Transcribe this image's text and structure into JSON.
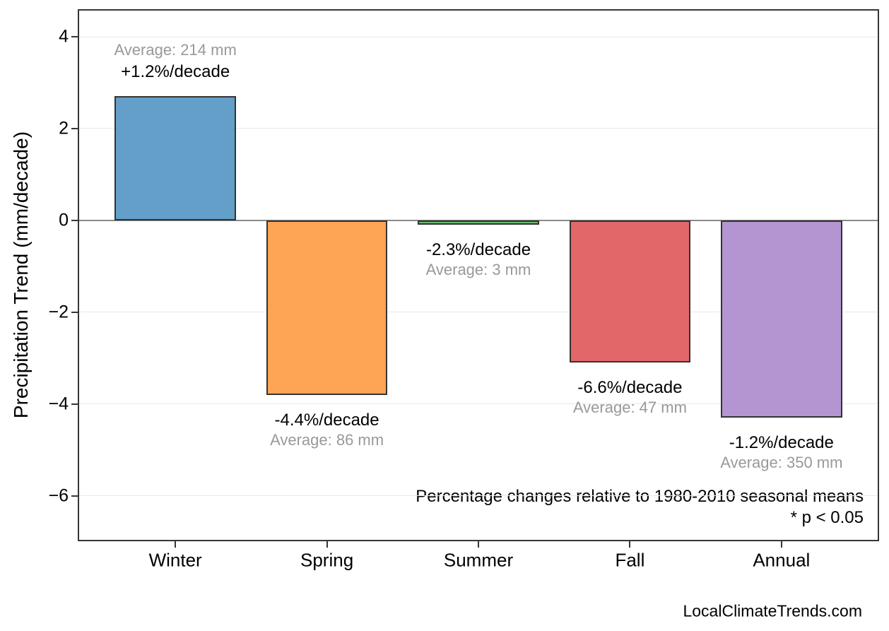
{
  "figure": {
    "background": "#ffffff",
    "footer": "LocalClimateTrends.com"
  },
  "chart_data": {
    "type": "bar",
    "title": "",
    "ylabel": "Precipitation Trend (mm/decade)",
    "xlabel": "",
    "categories": [
      "Winter",
      "Spring",
      "Summer",
      "Fall",
      "Annual"
    ],
    "values": [
      2.7,
      -3.8,
      -0.07,
      -3.1,
      -4.3
    ],
    "bar_colors": [
      "#639FC9",
      "#FEA455",
      "#6CBC6C",
      "#E26768",
      "#B495D1"
    ],
    "bar_edge_color": "#333333",
    "annotations": [
      {
        "pct": "+1.2%/decade",
        "avg": "Average: 214 mm"
      },
      {
        "pct": "-4.4%/decade",
        "avg": "Average: 86 mm"
      },
      {
        "pct": "-2.3%/decade",
        "avg": "Average: 3 mm"
      },
      {
        "pct": "-6.6%/decade",
        "avg": "Average: 47 mm"
      },
      {
        "pct": "-1.2%/decade",
        "avg": "Average: 350 mm"
      }
    ],
    "yticks": [
      4,
      2,
      0,
      -2,
      -4,
      -6
    ],
    "ytick_labels": [
      "4",
      "2",
      "0",
      "−2",
      "−4",
      "−6"
    ],
    "ylim": [
      -6.96,
      4.57
    ],
    "grid": "horizontal",
    "grid_color": "#e8e8e8",
    "zero_line_color": "#8a8a8a",
    "avg_label_color": "#999999",
    "pct_label_color": "#000000",
    "legend": "none",
    "notes": [
      "Percentage changes relative to 1980-2010 seasonal means",
      "* p < 0.05"
    ]
  }
}
